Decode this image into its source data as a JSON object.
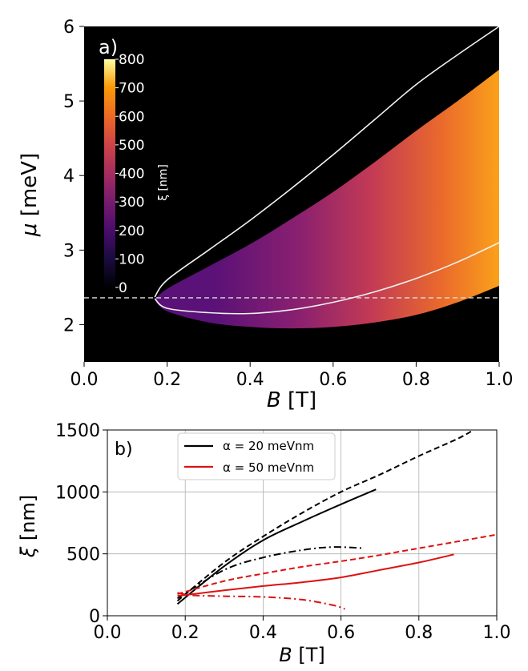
{
  "chart_data": [
    {
      "type": "heatmap",
      "panel_label": "a)",
      "xlabel_symbol": "B",
      "xlabel_unit": " [T]",
      "ylabel_symbol": "μ",
      "ylabel_unit": " [meV]",
      "xlim": [
        0.0,
        1.0
      ],
      "ylim": [
        1.5,
        6.0
      ],
      "xticks": [
        0.0,
        0.2,
        0.4,
        0.6,
        0.8,
        1.0
      ],
      "xtick_labels": [
        "0.0",
        "0.2",
        "0.4",
        "0.6",
        "0.8",
        "1.0"
      ],
      "yticks": [
        2,
        3,
        4,
        5,
        6
      ],
      "ytick_labels": [
        "2",
        "3",
        "4",
        "5",
        "6"
      ],
      "colorbar": {
        "label": "ξ [nm]",
        "range": [
          0,
          800
        ],
        "ticks": [
          0,
          100,
          200,
          300,
          400,
          500,
          600,
          700,
          800
        ],
        "tick_labels": [
          "0",
          "100",
          "200",
          "300",
          "400",
          "500",
          "600",
          "700",
          "800"
        ],
        "colormap": "inferno"
      },
      "background_color": "#000000",
      "region": {
        "B_start": 0.17,
        "mu_at_start": 2.33,
        "upper_boundary": [
          {
            "B": 0.17,
            "mu": 2.33
          },
          {
            "B": 0.2,
            "mu": 2.48
          },
          {
            "B": 0.3,
            "mu": 2.78
          },
          {
            "B": 0.4,
            "mu": 3.08
          },
          {
            "B": 0.5,
            "mu": 3.42
          },
          {
            "B": 0.6,
            "mu": 3.78
          },
          {
            "B": 0.7,
            "mu": 4.18
          },
          {
            "B": 0.8,
            "mu": 4.6
          },
          {
            "B": 0.9,
            "mu": 5.0
          },
          {
            "B": 1.0,
            "mu": 5.42
          }
        ],
        "lower_boundary": [
          {
            "B": 0.17,
            "mu": 2.33
          },
          {
            "B": 0.2,
            "mu": 2.18
          },
          {
            "B": 0.3,
            "mu": 2.03
          },
          {
            "B": 0.4,
            "mu": 1.97
          },
          {
            "B": 0.5,
            "mu": 1.95
          },
          {
            "B": 0.6,
            "mu": 1.97
          },
          {
            "B": 0.7,
            "mu": 2.03
          },
          {
            "B": 0.8,
            "mu": 2.13
          },
          {
            "B": 0.9,
            "mu": 2.3
          },
          {
            "B": 1.0,
            "mu": 2.52
          }
        ]
      },
      "white_curves": [
        {
          "style": "solid",
          "points": [
            {
              "B": 0.17,
              "mu": 2.37
            },
            {
              "B": 0.2,
              "mu": 2.6
            },
            {
              "B": 0.3,
              "mu": 3.0
            },
            {
              "B": 0.4,
              "mu": 3.4
            },
            {
              "B": 0.5,
              "mu": 3.83
            },
            {
              "B": 0.6,
              "mu": 4.28
            },
            {
              "B": 0.7,
              "mu": 4.75
            },
            {
              "B": 0.8,
              "mu": 5.22
            },
            {
              "B": 0.9,
              "mu": 5.62
            },
            {
              "B": 1.0,
              "mu": 6.0
            }
          ]
        },
        {
          "style": "solid",
          "points": [
            {
              "B": 0.17,
              "mu": 2.35
            },
            {
              "B": 0.2,
              "mu": 2.22
            },
            {
              "B": 0.3,
              "mu": 2.16
            },
            {
              "B": 0.4,
              "mu": 2.15
            },
            {
              "B": 0.5,
              "mu": 2.2
            },
            {
              "B": 0.6,
              "mu": 2.3
            },
            {
              "B": 0.7,
              "mu": 2.44
            },
            {
              "B": 0.8,
              "mu": 2.62
            },
            {
              "B": 0.9,
              "mu": 2.84
            },
            {
              "B": 1.0,
              "mu": 3.1
            }
          ]
        }
      ],
      "reference_line": {
        "style": "dashed",
        "color": "#dddddd",
        "mu": 2.36
      }
    },
    {
      "type": "line",
      "panel_label": "b)",
      "xlabel_symbol": "B",
      "xlabel_unit": " [T]",
      "ylabel_symbol": "ξ",
      "ylabel_unit": " [nm]",
      "xlim": [
        0.0,
        1.0
      ],
      "ylim": [
        0,
        1500
      ],
      "xticks": [
        0.0,
        0.2,
        0.4,
        0.6,
        0.8,
        1.0
      ],
      "xtick_labels": [
        "0.0",
        "0.2",
        "0.4",
        "0.6",
        "0.8",
        "1.0"
      ],
      "yticks": [
        0,
        500,
        1000,
        1500
      ],
      "ytick_labels": [
        "0",
        "500",
        "1000",
        "1500"
      ],
      "grid": true,
      "legend": {
        "position": "top-left",
        "entries": [
          {
            "label": "α = 20 meVnm",
            "color": "#000000"
          },
          {
            "label": "α = 50 meVnm",
            "color": "#dd1111"
          }
        ]
      },
      "series": [
        {
          "color": "#000000",
          "style": "solid",
          "points": [
            {
              "B": 0.18,
              "y": 95
            },
            {
              "B": 0.3,
              "y": 400
            },
            {
              "B": 0.4,
              "y": 610
            },
            {
              "B": 0.5,
              "y": 760
            },
            {
              "B": 0.6,
              "y": 900
            },
            {
              "B": 0.69,
              "y": 1020
            }
          ]
        },
        {
          "color": "#000000",
          "style": "dashed",
          "points": [
            {
              "B": 0.18,
              "y": 120
            },
            {
              "B": 0.3,
              "y": 430
            },
            {
              "B": 0.4,
              "y": 640
            },
            {
              "B": 0.5,
              "y": 830
            },
            {
              "B": 0.6,
              "y": 1000
            },
            {
              "B": 0.7,
              "y": 1140
            },
            {
              "B": 0.8,
              "y": 1290
            },
            {
              "B": 0.9,
              "y": 1430
            },
            {
              "B": 0.94,
              "y": 1500
            }
          ]
        },
        {
          "color": "#000000",
          "style": "dashdot",
          "points": [
            {
              "B": 0.18,
              "y": 140
            },
            {
              "B": 0.3,
              "y": 370
            },
            {
              "B": 0.4,
              "y": 470
            },
            {
              "B": 0.5,
              "y": 530
            },
            {
              "B": 0.58,
              "y": 555
            },
            {
              "B": 0.66,
              "y": 545
            }
          ]
        },
        {
          "color": "#dd1111",
          "style": "solid",
          "points": [
            {
              "B": 0.18,
              "y": 160
            },
            {
              "B": 0.3,
              "y": 205
            },
            {
              "B": 0.4,
              "y": 240
            },
            {
              "B": 0.5,
              "y": 270
            },
            {
              "B": 0.6,
              "y": 310
            },
            {
              "B": 0.7,
              "y": 370
            },
            {
              "B": 0.8,
              "y": 430
            },
            {
              "B": 0.89,
              "y": 495
            }
          ]
        },
        {
          "color": "#dd1111",
          "style": "dashed",
          "points": [
            {
              "B": 0.18,
              "y": 175
            },
            {
              "B": 0.3,
              "y": 280
            },
            {
              "B": 0.4,
              "y": 340
            },
            {
              "B": 0.5,
              "y": 395
            },
            {
              "B": 0.6,
              "y": 440
            },
            {
              "B": 0.7,
              "y": 490
            },
            {
              "B": 0.8,
              "y": 545
            },
            {
              "B": 0.9,
              "y": 600
            },
            {
              "B": 1.0,
              "y": 655
            }
          ]
        },
        {
          "color": "#dd1111",
          "style": "dashdot",
          "points": [
            {
              "B": 0.18,
              "y": 185
            },
            {
              "B": 0.22,
              "y": 165
            },
            {
              "B": 0.3,
              "y": 158
            },
            {
              "B": 0.4,
              "y": 152
            },
            {
              "B": 0.5,
              "y": 130
            },
            {
              "B": 0.58,
              "y": 85
            },
            {
              "B": 0.61,
              "y": 55
            }
          ]
        }
      ]
    }
  ]
}
